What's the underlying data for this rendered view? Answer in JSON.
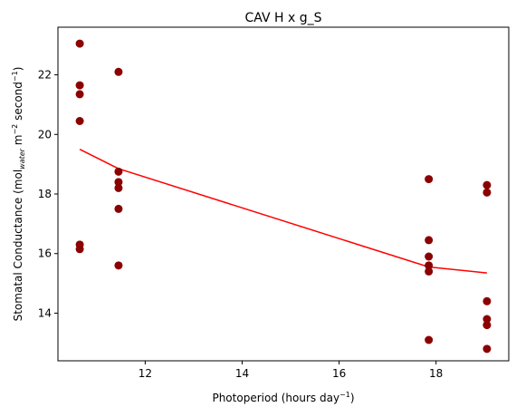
{
  "chart_data": {
    "type": "scatter",
    "title": "CAV H x g_S",
    "xlabel": {
      "base": "Photoperiod (hours day",
      "sup": "−1",
      "tail": ")"
    },
    "ylabel": {
      "p1": "Stomatal Conductance (mol",
      "sub1": "water",
      "p2": " m",
      "sup1": "−2",
      "p3": " second",
      "sup2": "−1",
      "p4": ")"
    },
    "xlim": [
      10.2,
      19.5
    ],
    "ylim": [
      12.4,
      23.6
    ],
    "xticks": [
      12,
      14,
      16,
      18
    ],
    "yticks": [
      14,
      16,
      18,
      20,
      22
    ],
    "grid": false,
    "point_color": "#8b0000",
    "line_color": "#ff0000",
    "points": [
      {
        "x": 10.65,
        "y": 23.05
      },
      {
        "x": 10.65,
        "y": 21.65
      },
      {
        "x": 10.65,
        "y": 21.35
      },
      {
        "x": 10.65,
        "y": 20.45
      },
      {
        "x": 10.65,
        "y": 16.3
      },
      {
        "x": 10.65,
        "y": 16.15
      },
      {
        "x": 11.45,
        "y": 22.1
      },
      {
        "x": 11.45,
        "y": 18.75
      },
      {
        "x": 11.45,
        "y": 18.4
      },
      {
        "x": 11.45,
        "y": 18.2
      },
      {
        "x": 11.45,
        "y": 17.5
      },
      {
        "x": 11.45,
        "y": 15.6
      },
      {
        "x": 17.85,
        "y": 18.5
      },
      {
        "x": 17.85,
        "y": 16.45
      },
      {
        "x": 17.85,
        "y": 15.9
      },
      {
        "x": 17.85,
        "y": 15.6
      },
      {
        "x": 17.85,
        "y": 15.4
      },
      {
        "x": 17.85,
        "y": 13.1
      },
      {
        "x": 19.05,
        "y": 18.3
      },
      {
        "x": 19.05,
        "y": 18.05
      },
      {
        "x": 19.05,
        "y": 14.4
      },
      {
        "x": 19.05,
        "y": 13.8
      },
      {
        "x": 19.05,
        "y": 13.6
      },
      {
        "x": 19.05,
        "y": 12.8
      }
    ],
    "trend_line": {
      "x": [
        10.65,
        11.45,
        17.85,
        19.05
      ],
      "y": [
        19.5,
        18.85,
        15.55,
        15.35
      ]
    }
  }
}
